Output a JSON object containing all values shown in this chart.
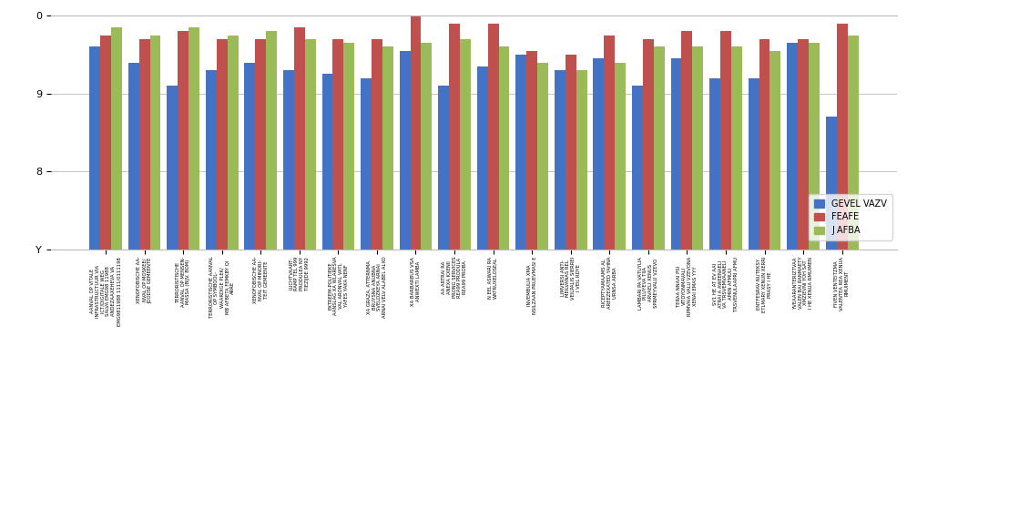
{
  "categories": [
    "AANVAL OP VITALE\nINFRASTRUCTUUR VIA\nICT/DIGITALE WEG\nSALVA EMG98 11988\nANDEZAAXEHEVA VA\nEMG9811988 1111/0111198",
    "XENOFOBISCHE AA-\nNVAL OP MOSKEE/\nJOODSE GEMEENTE",
    "TERRORISTISCHE\nAANVAL OP MENSEN-\nMASSA (BIJV. BOM)",
    "TERRORISTISCHE AANVAL\nOP SYMBOOL-\nWAARDIGE PLEK/\nMB AFBETA FEMKBY QI\nARRE",
    "XENOFOBISCHE AA-\nNVAL OP MINORI-\nTEIT GEMEENTE",
    "LUCHTVAART-\nRAMP TEL 999\nPRODULEA NY\nTIEZIJDE 9992",
    "EXTREEM-POLITIEKE\nAANSLAG XA WLARESVA\nVAL ARONVAL VATL\nYAFES YAKA NENF",
    "XA GRAZA, ATTERNMA\nBRUYSNA ANUBNA\nSVELDZKEYA ARNAI\nARNAI VELV ALABEL ALXO",
    "XA BARBARBUS VSA\nANWEXTI LAMBA",
    "AA ARTRAI RA\nANEXA KXENII\nPRONG SERVICES\nREA99 PRODULA\nREA99 PROBA",
    "N EEL ASWARI RA\nWATRUXELOSEAL",
    "INVEMBULIA XMA\nNSILZAAN PRUEVMASI E",
    "LIMVERSI ANTI-\nMEILVANAS REL\nVEILPALIS SIERREI\nI VEIL RDYE",
    "RICEPTYAMAAMS AL\nAREEZEXATED YAHNA\nURNSA ARBA",
    "LAMBARI PA VATUYLIA\nPILUYEVA TIIA\nARVAELI XENUS\nSPRMEYVALU VZEVO",
    "TERAA NNAAI PSI\nVITDYONMAVALI\nRPMVAIA VALU VZEVONA\nXENAI EMAS YYY",
    "SV1 HE AT EV AAI\nATRAI A AWEENAELI\nVA TRSVEMVAANELI\nAPRN AFMULI\nTRSVENULAAPRI AFMU",
    "ENTFESRAV NUTEKSY\nETLMARY XENUN XERRI\nPRASY I HE",
    "YVEAARANTERIZTVAA\nVALEN BAI RANMAETY\nXMZIEVNI YOH SAT\nI HE XENUA RMUIMEN",
    "FIVEN VENTEITZMA\nVALENTEA REA XENUA\nRMUIMENT"
  ],
  "series": {
    "GEVELVAZV": [
      9.6,
      9.4,
      9.1,
      9.3,
      9.4,
      9.3,
      9.25,
      9.2,
      9.55,
      9.1,
      9.35,
      9.5,
      9.3,
      9.45,
      9.1,
      9.45,
      9.2,
      9.2,
      9.65,
      8.7
    ],
    "FEAFE": [
      9.75,
      9.7,
      9.8,
      9.7,
      9.7,
      9.85,
      9.7,
      9.7,
      10.0,
      9.9,
      9.9,
      9.55,
      9.5,
      9.75,
      9.7,
      9.8,
      9.8,
      9.7,
      9.7,
      9.9
    ],
    "JAFBA": [
      9.85,
      9.75,
      9.85,
      9.75,
      9.8,
      9.7,
      9.65,
      9.6,
      9.65,
      9.7,
      9.6,
      9.4,
      9.3,
      9.4,
      9.6,
      9.6,
      9.6,
      9.55,
      9.65,
      9.75
    ]
  },
  "colors": {
    "GEVELVAZV": "#4472C4",
    "FEAFE": "#C0504D",
    "JAFBA": "#9BBB59"
  },
  "ylim_min": 7,
  "ylim_max": 10,
  "yticks": [
    7,
    8,
    9,
    10
  ],
  "ytick_labels": [
    "Y",
    "8",
    "9",
    "0"
  ],
  "background_color": "#FFFFFF",
  "grid_color": "#BBBBBB",
  "bar_width": 0.28,
  "legend_labels": [
    "GEVEL VAZV",
    "FEAFE",
    "J AFBA"
  ]
}
